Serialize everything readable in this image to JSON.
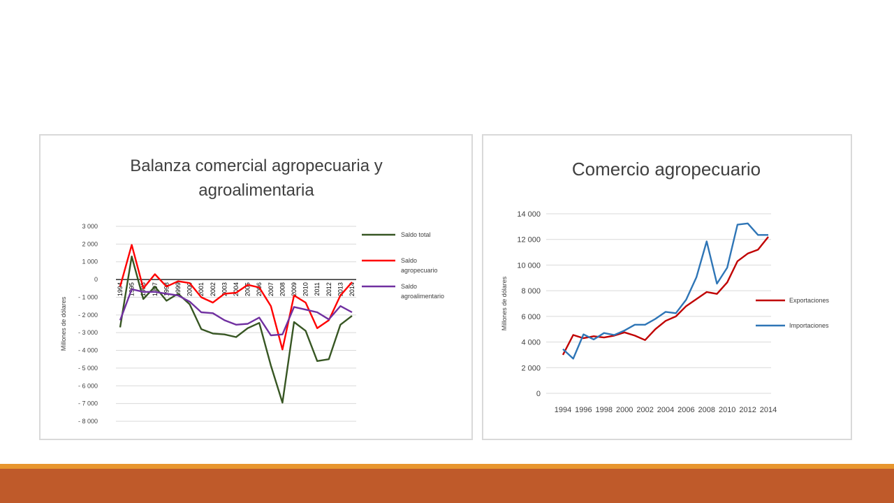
{
  "chart_data": [
    {
      "type": "line",
      "title_lines": [
        "Balanza comercial agropecuaria y",
        "agroalimentaria"
      ],
      "ylabel": "Millones  de dólares",
      "xlabel": "",
      "categories": [
        "1994",
        "1995",
        "1996",
        "1997",
        "1998",
        "1999",
        "2000",
        "2001",
        "2002",
        "2003",
        "2004",
        "2005",
        "2006",
        "2007",
        "2008",
        "2009",
        "2010",
        "2011",
        "2012",
        "2013",
        "2014"
      ],
      "ylim": [
        -8000,
        3000
      ],
      "yticks": [
        3000,
        2000,
        1000,
        0,
        -1000,
        -2000,
        -3000,
        -4000,
        -5000,
        -6000,
        -7000,
        -8000
      ],
      "ytick_labels": [
        "3 000",
        "2 000",
        "1 000",
        "0",
        "- 1 000",
        "- 2 000",
        "- 3 000",
        "- 4 000",
        "- 5 000",
        "- 6 000",
        "- 7 000",
        "- 8 000"
      ],
      "grid": true,
      "legend_position": "right",
      "series": [
        {
          "name": "Saldo total",
          "legend_lines": [
            "Saldo total"
          ],
          "color": "#375623",
          "values": [
            -2700,
            1300,
            -1100,
            -400,
            -1200,
            -800,
            -1400,
            -2800,
            -3050,
            -3100,
            -3250,
            -2750,
            -2450,
            -4850,
            -6950,
            -2400,
            -2900,
            -4600,
            -4500,
            -2550,
            -2050
          ]
        },
        {
          "name": "Saldo agropecuario",
          "legend_lines": [
            "Saldo",
            "agropecuario"
          ],
          "color": "#ff0000",
          "values": [
            -400,
            1950,
            -500,
            300,
            -400,
            -100,
            -200,
            -1000,
            -1300,
            -800,
            -750,
            -300,
            -450,
            -1500,
            -3950,
            -900,
            -1300,
            -2750,
            -2300,
            -900,
            -150
          ]
        },
        {
          "name": "Saldo agroalimentario",
          "legend_lines": [
            "Saldo",
            "agroalimentario"
          ],
          "color": "#7030a0",
          "values": [
            -2300,
            -550,
            -700,
            -700,
            -800,
            -900,
            -1250,
            -1850,
            -1900,
            -2300,
            -2550,
            -2500,
            -2150,
            -3150,
            -3100,
            -1550,
            -1700,
            -1850,
            -2250,
            -1500,
            -1850
          ]
        }
      ]
    },
    {
      "type": "line",
      "title": "Comercio agropecuario",
      "ylabel": "Millones  de dólares",
      "xlabel": "",
      "x": [
        1994,
        1995,
        1996,
        1997,
        1998,
        1999,
        2000,
        2001,
        2002,
        2003,
        2004,
        2005,
        2006,
        2007,
        2008,
        2009,
        2010,
        2011,
        2012,
        2013,
        2014
      ],
      "xtick_labels": [
        "1994",
        "1996",
        "1998",
        "2000",
        "2002",
        "2004",
        "2006",
        "2008",
        "2010",
        "2012",
        "2014"
      ],
      "ylim": [
        0,
        14000
      ],
      "yticks": [
        0,
        2000,
        4000,
        6000,
        8000,
        10000,
        12000,
        14000
      ],
      "ytick_labels": [
        "0",
        "2 000",
        "4 000",
        "6 000",
        "8 000",
        "10 000",
        "12 000",
        "14 000"
      ],
      "grid": true,
      "legend_position": "right",
      "series": [
        {
          "name": "Exportaciones",
          "color": "#c00000",
          "values": [
            3000,
            4550,
            4300,
            4450,
            4350,
            4500,
            4750,
            4500,
            4150,
            5000,
            5650,
            6000,
            6800,
            7350,
            7900,
            7750,
            8650,
            10300,
            10900,
            11200,
            12200
          ]
        },
        {
          "name": "Importaciones",
          "color": "#2e75b6",
          "values": [
            3450,
            2700,
            4600,
            4200,
            4700,
            4550,
            4900,
            5350,
            5350,
            5800,
            6350,
            6250,
            7300,
            9050,
            11850,
            8550,
            9800,
            13150,
            13250,
            12350,
            12350
          ]
        }
      ]
    }
  ]
}
